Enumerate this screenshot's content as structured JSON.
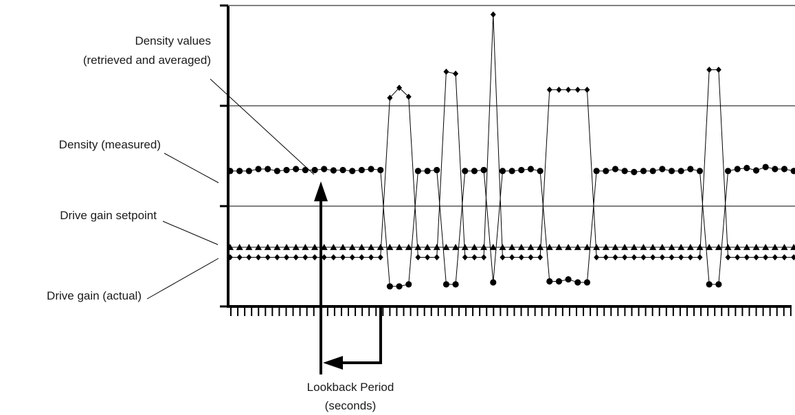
{
  "chart_data": {
    "type": "line",
    "title": "",
    "xlabel": "",
    "ylabel": "",
    "tick_count": 82,
    "grid": true,
    "series": [
      {
        "name": "Density (measured)",
        "marker": "circle",
        "points": [
          [
            0,
            67.5
          ],
          [
            1,
            67.5
          ],
          [
            2,
            67.5
          ],
          [
            3,
            68.5
          ],
          [
            4,
            68.5
          ],
          [
            5,
            67.5
          ],
          [
            6,
            68
          ],
          [
            7,
            68.5
          ],
          [
            8,
            68
          ],
          [
            9,
            68
          ],
          [
            10,
            68.5
          ],
          [
            11,
            67.8
          ],
          [
            12,
            68
          ],
          [
            13,
            67.5
          ],
          [
            14,
            68
          ],
          [
            15,
            68.5
          ],
          [
            16,
            68
          ],
          [
            17,
            10
          ],
          [
            18,
            10
          ],
          [
            19,
            11
          ],
          [
            20,
            67.5
          ],
          [
            21,
            67.5
          ],
          [
            22,
            68
          ],
          [
            23,
            11
          ],
          [
            24,
            11
          ],
          [
            25,
            67.5
          ],
          [
            26,
            67.5
          ],
          [
            27,
            68
          ],
          [
            28,
            12
          ],
          [
            29,
            67.5
          ],
          [
            30,
            67.5
          ],
          [
            31,
            68
          ],
          [
            32,
            68.5
          ],
          [
            33,
            67.5
          ],
          [
            34,
            12.5
          ],
          [
            35,
            12.5
          ],
          [
            36,
            13.5
          ],
          [
            37,
            12
          ],
          [
            38,
            12
          ],
          [
            39,
            67.5
          ],
          [
            40,
            67.5
          ],
          [
            41,
            68.5
          ],
          [
            42,
            67.5
          ],
          [
            43,
            67
          ],
          [
            44,
            67.5
          ],
          [
            45,
            67.5
          ],
          [
            46,
            68.5
          ],
          [
            47,
            67.5
          ],
          [
            48,
            67.5
          ],
          [
            49,
            68.5
          ],
          [
            50,
            67.5
          ],
          [
            51,
            11
          ],
          [
            52,
            11
          ],
          [
            53,
            67.5
          ],
          [
            54,
            68.5
          ],
          [
            55,
            69
          ],
          [
            56,
            67.8
          ],
          [
            57,
            69.5
          ],
          [
            58,
            68.5
          ],
          [
            59,
            68.5
          ],
          [
            60,
            67.5
          ]
        ]
      },
      {
        "name": "Drive gain setpoint",
        "marker": "triangle",
        "points": [
          [
            0,
            29.5
          ],
          [
            1,
            29.5
          ],
          [
            2,
            29.5
          ],
          [
            3,
            29.5
          ],
          [
            4,
            29.5
          ],
          [
            5,
            29.5
          ],
          [
            6,
            29.5
          ],
          [
            7,
            29.5
          ],
          [
            8,
            29.5
          ],
          [
            9,
            29.5
          ],
          [
            10,
            29.5
          ],
          [
            11,
            29.5
          ],
          [
            12,
            29.5
          ],
          [
            13,
            29.5
          ],
          [
            14,
            29.5
          ],
          [
            15,
            29.5
          ],
          [
            16,
            29.5
          ],
          [
            17,
            29.5
          ],
          [
            18,
            29.5
          ],
          [
            19,
            29.5
          ],
          [
            20,
            29.5
          ],
          [
            21,
            29.5
          ],
          [
            22,
            29.5
          ],
          [
            23,
            29.5
          ],
          [
            24,
            29.5
          ],
          [
            25,
            29.5
          ],
          [
            26,
            29.5
          ],
          [
            27,
            29.5
          ],
          [
            28,
            29.5
          ],
          [
            29,
            29.5
          ],
          [
            30,
            29.5
          ],
          [
            31,
            29.5
          ],
          [
            32,
            29.5
          ],
          [
            33,
            29.5
          ],
          [
            34,
            29.5
          ],
          [
            35,
            29.5
          ],
          [
            36,
            29.5
          ],
          [
            37,
            29.5
          ],
          [
            38,
            29.5
          ],
          [
            39,
            29.5
          ],
          [
            40,
            29.5
          ],
          [
            41,
            29.5
          ],
          [
            42,
            29.5
          ],
          [
            43,
            29.5
          ],
          [
            44,
            29.5
          ],
          [
            45,
            29.5
          ],
          [
            46,
            29.5
          ],
          [
            47,
            29.5
          ],
          [
            48,
            29.5
          ],
          [
            49,
            29.5
          ],
          [
            50,
            29.5
          ],
          [
            51,
            29.5
          ],
          [
            52,
            29.5
          ],
          [
            53,
            29.5
          ],
          [
            54,
            29.5
          ],
          [
            55,
            29.5
          ],
          [
            56,
            29.5
          ],
          [
            57,
            29.5
          ],
          [
            58,
            29.5
          ],
          [
            59,
            29.5
          ],
          [
            60,
            29.5
          ]
        ]
      },
      {
        "name": "Drive gain (actual)",
        "marker": "diamond",
        "points": [
          [
            0,
            24.5
          ],
          [
            1,
            24.5
          ],
          [
            2,
            24.5
          ],
          [
            3,
            24.5
          ],
          [
            4,
            24.5
          ],
          [
            5,
            24.5
          ],
          [
            6,
            24.5
          ],
          [
            7,
            24.5
          ],
          [
            8,
            24.5
          ],
          [
            9,
            24.5
          ],
          [
            10,
            24.5
          ],
          [
            11,
            24.5
          ],
          [
            12,
            24.5
          ],
          [
            13,
            24.5
          ],
          [
            14,
            24.5
          ],
          [
            15,
            24.5
          ],
          [
            16,
            24.5
          ],
          [
            17,
            104
          ],
          [
            18,
            109
          ],
          [
            19,
            104.5
          ],
          [
            20,
            24.5
          ],
          [
            21,
            24.5
          ],
          [
            22,
            24.5
          ],
          [
            23,
            117
          ],
          [
            24,
            116
          ],
          [
            25,
            24.5
          ],
          [
            26,
            24.5
          ],
          [
            27,
            24.5
          ],
          [
            28,
            145.5
          ],
          [
            29,
            24.5
          ],
          [
            30,
            24.5
          ],
          [
            31,
            24.5
          ],
          [
            32,
            24.5
          ],
          [
            33,
            24.5
          ],
          [
            34,
            108
          ],
          [
            35,
            108
          ],
          [
            36,
            108
          ],
          [
            37,
            108
          ],
          [
            38,
            108
          ],
          [
            39,
            24.5
          ],
          [
            40,
            24.5
          ],
          [
            41,
            24.5
          ],
          [
            42,
            24.5
          ],
          [
            43,
            24.5
          ],
          [
            44,
            24.5
          ],
          [
            45,
            24.5
          ],
          [
            46,
            24.5
          ],
          [
            47,
            24.5
          ],
          [
            48,
            24.5
          ],
          [
            49,
            24.5
          ],
          [
            50,
            24.5
          ],
          [
            51,
            118
          ],
          [
            52,
            118
          ],
          [
            53,
            24.5
          ],
          [
            54,
            24.5
          ],
          [
            55,
            24.5
          ],
          [
            56,
            24.5
          ],
          [
            57,
            24.5
          ],
          [
            58,
            24.5
          ],
          [
            59,
            24.5
          ],
          [
            60,
            24.5
          ]
        ]
      }
    ],
    "annotations": [
      {
        "id": "density-values",
        "text": [
          "Density values",
          "(retrieved and averaged)"
        ]
      },
      {
        "id": "density-measured",
        "text": [
          "Density (measured)"
        ]
      },
      {
        "id": "drive-gain-setpoint",
        "text": [
          "Drive gain setpoint"
        ]
      },
      {
        "id": "drive-gain-actual",
        "text": [
          "Drive gain (actual)"
        ]
      },
      {
        "id": "lookback-period",
        "text": [
          "Lookback Period",
          "(seconds)"
        ]
      }
    ]
  }
}
